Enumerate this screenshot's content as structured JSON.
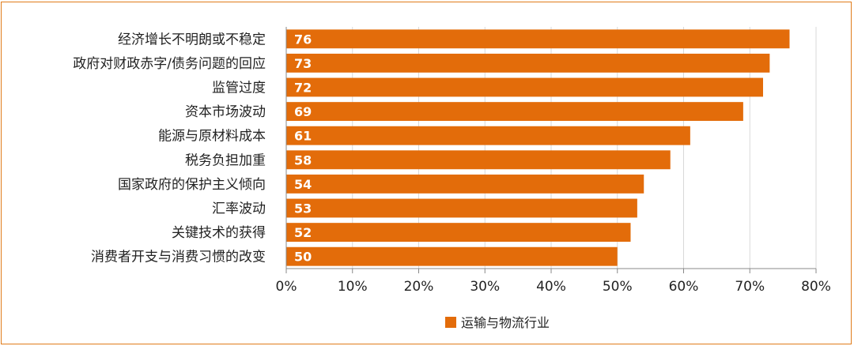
{
  "chart_data": {
    "type": "bar",
    "orientation": "horizontal",
    "categories": [
      "经济增长不明朗或不稳定",
      "政府对财政赤字/债务问题的回应",
      "监管过度",
      "资本市场波动",
      "能源与原材料成本",
      "税务负担加重",
      "国家政府的保护主义倾向",
      "汇率波动",
      "关键技术的获得",
      "消费者开支与消费习惯的改变"
    ],
    "series": [
      {
        "name": "运输与物流行业",
        "values": [
          76,
          73,
          72,
          69,
          61,
          58,
          54,
          53,
          52,
          50
        ]
      }
    ],
    "xlim": [
      0,
      80
    ],
    "xticks": [
      "0%",
      "10%",
      "20%",
      "30%",
      "40%",
      "50%",
      "60%",
      "70%",
      "80%"
    ],
    "xtick_values": [
      0,
      10,
      20,
      30,
      40,
      50,
      60,
      70,
      80
    ],
    "grid": true,
    "legend_position": "bottom",
    "colors": {
      "bar": "#E36C0A",
      "frame": "#E07B1A",
      "grid": "#D9D9D9",
      "axis": "#888888"
    }
  }
}
